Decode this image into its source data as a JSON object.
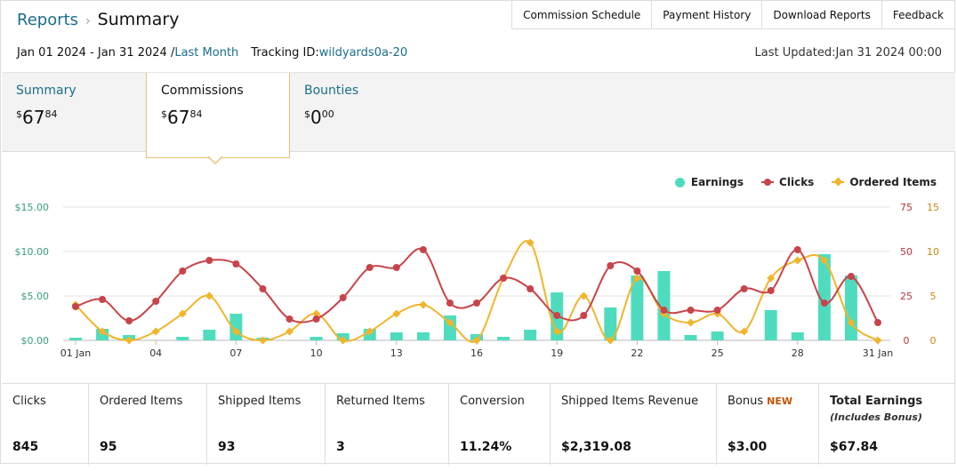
{
  "breadcrumb": {
    "parent": "Reports",
    "current": "Summary"
  },
  "topnav": [
    "Commission Schedule",
    "Payment History",
    "Download Reports",
    "Feedback"
  ],
  "datebar": {
    "range": "Jan 01 2024 - Jan 31 2024 /",
    "period_link": "Last Month",
    "tracking_label": "Tracking ID:",
    "tracking_id": "wildyards0a-20"
  },
  "last_updated": "Last Updated:Jan 31 2024 00:00",
  "tabs": [
    {
      "label": "Summary",
      "amount_major": "67",
      "amount_minor": "84",
      "currency": "$"
    },
    {
      "label": "Commissions",
      "amount_major": "67",
      "amount_minor": "84",
      "currency": "$"
    },
    {
      "label": "Bounties",
      "amount_major": "0",
      "amount_minor": "00",
      "currency": "$"
    }
  ],
  "colors": {
    "earnings": "#4fdcbe",
    "clicks": "#c8444a",
    "ordered": "#f0b52c",
    "link": "#1a6e8c"
  },
  "chart_data": {
    "type": "bar+line",
    "legend": [
      "Earnings",
      "Clicks",
      "Ordered Items"
    ],
    "legend_position": "top-right",
    "grid": true,
    "x_days": [
      1,
      2,
      3,
      4,
      5,
      6,
      7,
      8,
      9,
      10,
      11,
      12,
      13,
      14,
      15,
      16,
      17,
      18,
      19,
      20,
      21,
      22,
      23,
      24,
      25,
      26,
      27,
      28,
      29,
      30,
      31
    ],
    "x_tick_labels": [
      "01 Jan",
      "04",
      "07",
      "10",
      "13",
      "16",
      "19",
      "22",
      "25",
      "28",
      "31 Jan"
    ],
    "x_tick_days": [
      1,
      4,
      7,
      10,
      13,
      16,
      19,
      22,
      25,
      28,
      31
    ],
    "y_left": {
      "ticks": [
        "$0.00",
        "$5.00",
        "$10.00",
        "$15.00"
      ],
      "range": [
        0,
        15
      ]
    },
    "y_right_clicks": {
      "ticks": [
        "0",
        "25",
        "50",
        "75"
      ],
      "range": [
        0,
        75
      ]
    },
    "y_right_items": {
      "ticks": [
        "0",
        "5",
        "10",
        "15"
      ],
      "range": [
        0,
        15
      ]
    },
    "series": [
      {
        "name": "Earnings",
        "axis": "left",
        "values": [
          0.3,
          1.3,
          0.6,
          0,
          0.4,
          1.2,
          3.0,
          0.3,
          0,
          0.4,
          0.8,
          1.3,
          0.9,
          0.9,
          2.8,
          0.7,
          0.4,
          1.2,
          5.4,
          0,
          3.7,
          7.3,
          7.8,
          0.6,
          1.0,
          0,
          3.4,
          0.9,
          9.7,
          7.3,
          0
        ]
      },
      {
        "name": "Clicks",
        "axis": "clicks",
        "values": [
          19,
          23,
          11,
          22,
          39,
          45,
          43,
          29,
          12,
          12,
          24,
          41,
          41,
          51,
          21,
          21,
          35,
          29,
          14,
          14,
          42,
          39,
          17,
          17,
          17,
          29,
          28,
          51,
          21,
          36,
          10
        ]
      },
      {
        "name": "Ordered Items",
        "axis": "items",
        "values": [
          4,
          1,
          0,
          1,
          3,
          5,
          1,
          0,
          1,
          3,
          0,
          1,
          3,
          4,
          2,
          0,
          7,
          11,
          1,
          5,
          0,
          7,
          3,
          2,
          3,
          1,
          7,
          9,
          9,
          2,
          0
        ]
      }
    ]
  },
  "stats": [
    {
      "label": "Clicks",
      "value": "845"
    },
    {
      "label": "Ordered Items",
      "value": "95"
    },
    {
      "label": "Shipped Items",
      "value": "93"
    },
    {
      "label": "Returned Items",
      "value": "3"
    },
    {
      "label": "Conversion",
      "value": "11.24%"
    },
    {
      "label": "Shipped Items Revenue",
      "value": "$2,319.08"
    },
    {
      "label": "Bonus",
      "badge": "NEW",
      "value": "$3.00"
    },
    {
      "label": "Total Earnings",
      "sub": "(Includes Bonus)",
      "value": "$67.84"
    }
  ]
}
